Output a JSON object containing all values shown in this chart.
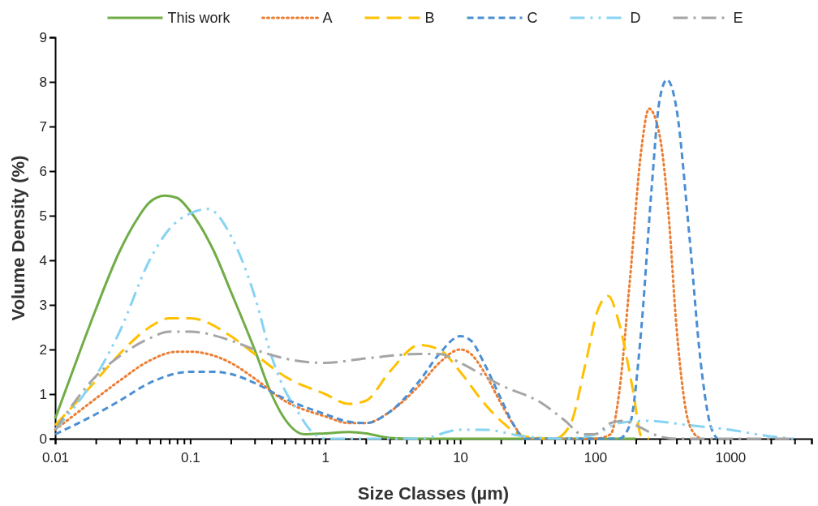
{
  "chart_data": {
    "type": "line",
    "xlabel": "Size Classes (µm)",
    "ylabel": "Volume Density (%)",
    "log": "x",
    "xlim": [
      0.01,
      4000
    ],
    "ylim": [
      0,
      9
    ],
    "yticks": [
      0,
      1,
      2,
      3,
      4,
      5,
      6,
      7,
      8,
      9
    ],
    "xticks": [
      {
        "value": 0.01,
        "label": "0.01"
      },
      {
        "value": 0.02,
        "label": null
      },
      {
        "value": 0.03,
        "label": null
      },
      {
        "value": 0.04,
        "label": null
      },
      {
        "value": 0.05,
        "label": null
      },
      {
        "value": 0.06,
        "label": null
      },
      {
        "value": 0.07,
        "label": null
      },
      {
        "value": 0.08,
        "label": null
      },
      {
        "value": 0.09,
        "label": null
      },
      {
        "value": 0.1,
        "label": "0.1"
      },
      {
        "value": 0.2,
        "label": null
      },
      {
        "value": 0.3,
        "label": null
      },
      {
        "value": 0.4,
        "label": null
      },
      {
        "value": 0.5,
        "label": null
      },
      {
        "value": 0.6,
        "label": null
      },
      {
        "value": 0.7,
        "label": null
      },
      {
        "value": 0.8,
        "label": null
      },
      {
        "value": 0.9,
        "label": null
      },
      {
        "value": 1,
        "label": "1"
      },
      {
        "value": 2,
        "label": null
      },
      {
        "value": 3,
        "label": null
      },
      {
        "value": 4,
        "label": null
      },
      {
        "value": 5,
        "label": null
      },
      {
        "value": 6,
        "label": null
      },
      {
        "value": 7,
        "label": null
      },
      {
        "value": 8,
        "label": null
      },
      {
        "value": 9,
        "label": null
      },
      {
        "value": 10,
        "label": "10"
      },
      {
        "value": 20,
        "label": null
      },
      {
        "value": 30,
        "label": null
      },
      {
        "value": 40,
        "label": null
      },
      {
        "value": 50,
        "label": null
      },
      {
        "value": 60,
        "label": null
      },
      {
        "value": 70,
        "label": null
      },
      {
        "value": 80,
        "label": null
      },
      {
        "value": 90,
        "label": null
      },
      {
        "value": 100,
        "label": "100"
      },
      {
        "value": 200,
        "label": null
      },
      {
        "value": 300,
        "label": null
      },
      {
        "value": 400,
        "label": null
      },
      {
        "value": 500,
        "label": null
      },
      {
        "value": 600,
        "label": null
      },
      {
        "value": 700,
        "label": null
      },
      {
        "value": 800,
        "label": null
      },
      {
        "value": 900,
        "label": null
      },
      {
        "value": 1000,
        "label": "1000"
      },
      {
        "value": 2000,
        "label": null
      },
      {
        "value": 3000,
        "label": null
      },
      {
        "value": 4000,
        "label": null
      }
    ],
    "grid": false,
    "legend": "top",
    "marker": "none",
    "series": [
      {
        "name": "This work",
        "color": "#70ad47",
        "line_style": "solid",
        "x": [
          0.01,
          0.015,
          0.02,
          0.03,
          0.04,
          0.05,
          0.065,
          0.08,
          0.1,
          0.15,
          0.2,
          0.3,
          0.4,
          0.5,
          0.7,
          1,
          1.5,
          2,
          3,
          5,
          200
        ],
        "values": [
          0.45,
          1.9,
          2.9,
          4.2,
          4.9,
          5.3,
          5.45,
          5.4,
          5.1,
          4.2,
          3.3,
          2.0,
          1.0,
          0.45,
          0.1,
          0.12,
          0.15,
          0.12,
          0.02,
          0,
          0
        ]
      },
      {
        "name": "A",
        "color": "#ed7d31",
        "line_style": "dotted",
        "x": [
          0.01,
          0.02,
          0.03,
          0.05,
          0.08,
          0.1,
          0.2,
          0.3,
          0.5,
          1,
          1.5,
          2,
          3,
          5,
          7,
          10,
          12,
          15,
          20,
          25,
          30,
          40,
          100,
          130,
          150,
          180,
          220,
          250,
          300,
          350,
          400,
          500,
          600
        ],
        "values": [
          0.2,
          0.9,
          1.3,
          1.75,
          1.95,
          1.95,
          1.7,
          1.35,
          0.85,
          0.5,
          0.35,
          0.35,
          0.6,
          1.2,
          1.7,
          2.0,
          1.9,
          1.5,
          0.8,
          0.3,
          0.02,
          0,
          0,
          0.1,
          1.0,
          3.5,
          6.5,
          7.4,
          6.8,
          5.0,
          2.5,
          0.3,
          0
        ]
      },
      {
        "name": "B",
        "color": "#ffc000",
        "line_style": "longdash",
        "x": [
          0.01,
          0.02,
          0.03,
          0.05,
          0.07,
          0.1,
          0.2,
          0.3,
          0.5,
          1,
          1.5,
          2,
          3,
          5,
          7,
          10,
          15,
          20,
          30,
          50,
          65,
          85,
          105,
          125,
          150,
          190,
          220,
          250
        ],
        "values": [
          0.3,
          1.3,
          1.9,
          2.5,
          2.7,
          2.7,
          2.3,
          1.9,
          1.4,
          1.0,
          0.78,
          0.85,
          1.5,
          2.1,
          2.0,
          1.5,
          0.8,
          0.4,
          0.05,
          0,
          0.3,
          1.7,
          2.9,
          3.2,
          2.6,
          1.1,
          0.05,
          0
        ]
      },
      {
        "name": "C",
        "color": "#4a8fd4",
        "line_style": "dashed",
        "x": [
          0.01,
          0.02,
          0.03,
          0.05,
          0.1,
          0.15,
          0.2,
          0.3,
          0.5,
          1,
          1.5,
          2,
          3,
          5,
          7,
          10,
          12,
          15,
          20,
          25,
          30,
          150,
          180,
          220,
          260,
          300,
          340,
          400,
          500,
          600,
          700,
          800
        ],
        "values": [
          0.1,
          0.55,
          0.85,
          1.25,
          1.5,
          1.5,
          1.45,
          1.25,
          0.9,
          0.55,
          0.38,
          0.35,
          0.6,
          1.3,
          1.9,
          2.3,
          2.2,
          1.7,
          0.9,
          0.3,
          0,
          0,
          0.3,
          2.5,
          5.5,
          7.6,
          8.05,
          7.4,
          4.5,
          1.8,
          0.4,
          0
        ]
      },
      {
        "name": "D",
        "color": "#87d3f3",
        "line_style": "dashdotdot",
        "x": [
          0.01,
          0.02,
          0.03,
          0.05,
          0.07,
          0.1,
          0.136,
          0.2,
          0.3,
          0.4,
          0.5,
          0.6,
          0.8,
          1,
          5,
          10,
          15,
          30,
          60,
          100,
          150,
          250,
          500,
          1000,
          2000,
          3000
        ],
        "values": [
          0.2,
          1.4,
          2.4,
          4.0,
          4.7,
          5.05,
          5.15,
          4.55,
          3.2,
          1.85,
          1.1,
          0.7,
          0.15,
          0,
          0,
          0.2,
          0.2,
          0.05,
          0,
          0.1,
          0.35,
          0.4,
          0.3,
          0.2,
          0.05,
          0
        ]
      },
      {
        "name": "E",
        "color": "#a5a5a5",
        "line_style": "dashdot",
        "x": [
          0.01,
          0.02,
          0.03,
          0.05,
          0.07,
          0.1,
          0.2,
          0.3,
          0.5,
          1,
          2,
          5,
          7,
          10,
          20,
          40,
          60,
          80,
          100,
          130,
          160,
          200,
          300,
          400,
          3000
        ],
        "values": [
          0.2,
          1.4,
          1.85,
          2.25,
          2.4,
          2.4,
          2.2,
          2.0,
          1.8,
          1.7,
          1.8,
          1.9,
          1.9,
          1.7,
          1.2,
          0.8,
          0.4,
          0.1,
          0.1,
          0.35,
          0.4,
          0.3,
          0.05,
          0,
          0
        ]
      }
    ]
  }
}
